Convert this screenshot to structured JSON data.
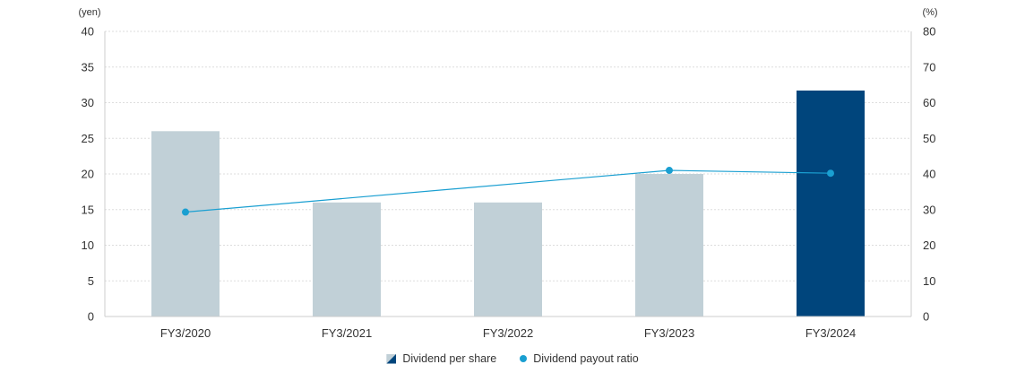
{
  "chart_data": {
    "type": "bar",
    "categories": [
      "FY3/2020",
      "FY3/2021",
      "FY3/2022",
      "FY3/2023",
      "FY3/2024"
    ],
    "series": [
      {
        "name": "Dividend per share",
        "type": "bar",
        "axis": "left",
        "values": [
          26,
          16,
          16,
          20,
          31.7
        ]
      },
      {
        "name": "Dividend payout ratio",
        "type": "line",
        "axis": "right",
        "values": [
          29.3,
          null,
          null,
          41,
          40.2
        ]
      }
    ],
    "y_left": {
      "unit": "(yen)",
      "ylim": [
        0,
        40
      ],
      "ticks": [
        0,
        5,
        10,
        15,
        20,
        25,
        30,
        35,
        40
      ]
    },
    "y_right": {
      "unit": "(%)",
      "ylim": [
        0,
        80
      ],
      "ticks": [
        0,
        10,
        20,
        30,
        40,
        50,
        60,
        70,
        80
      ]
    },
    "grid": true,
    "legend_position": "bottom-center"
  },
  "colors": {
    "bar_past": "#c1d0d7",
    "bar_latest": "#00457c",
    "line": "#1a9fd1",
    "grid": "#dddddd",
    "axis": "#cccccc"
  }
}
